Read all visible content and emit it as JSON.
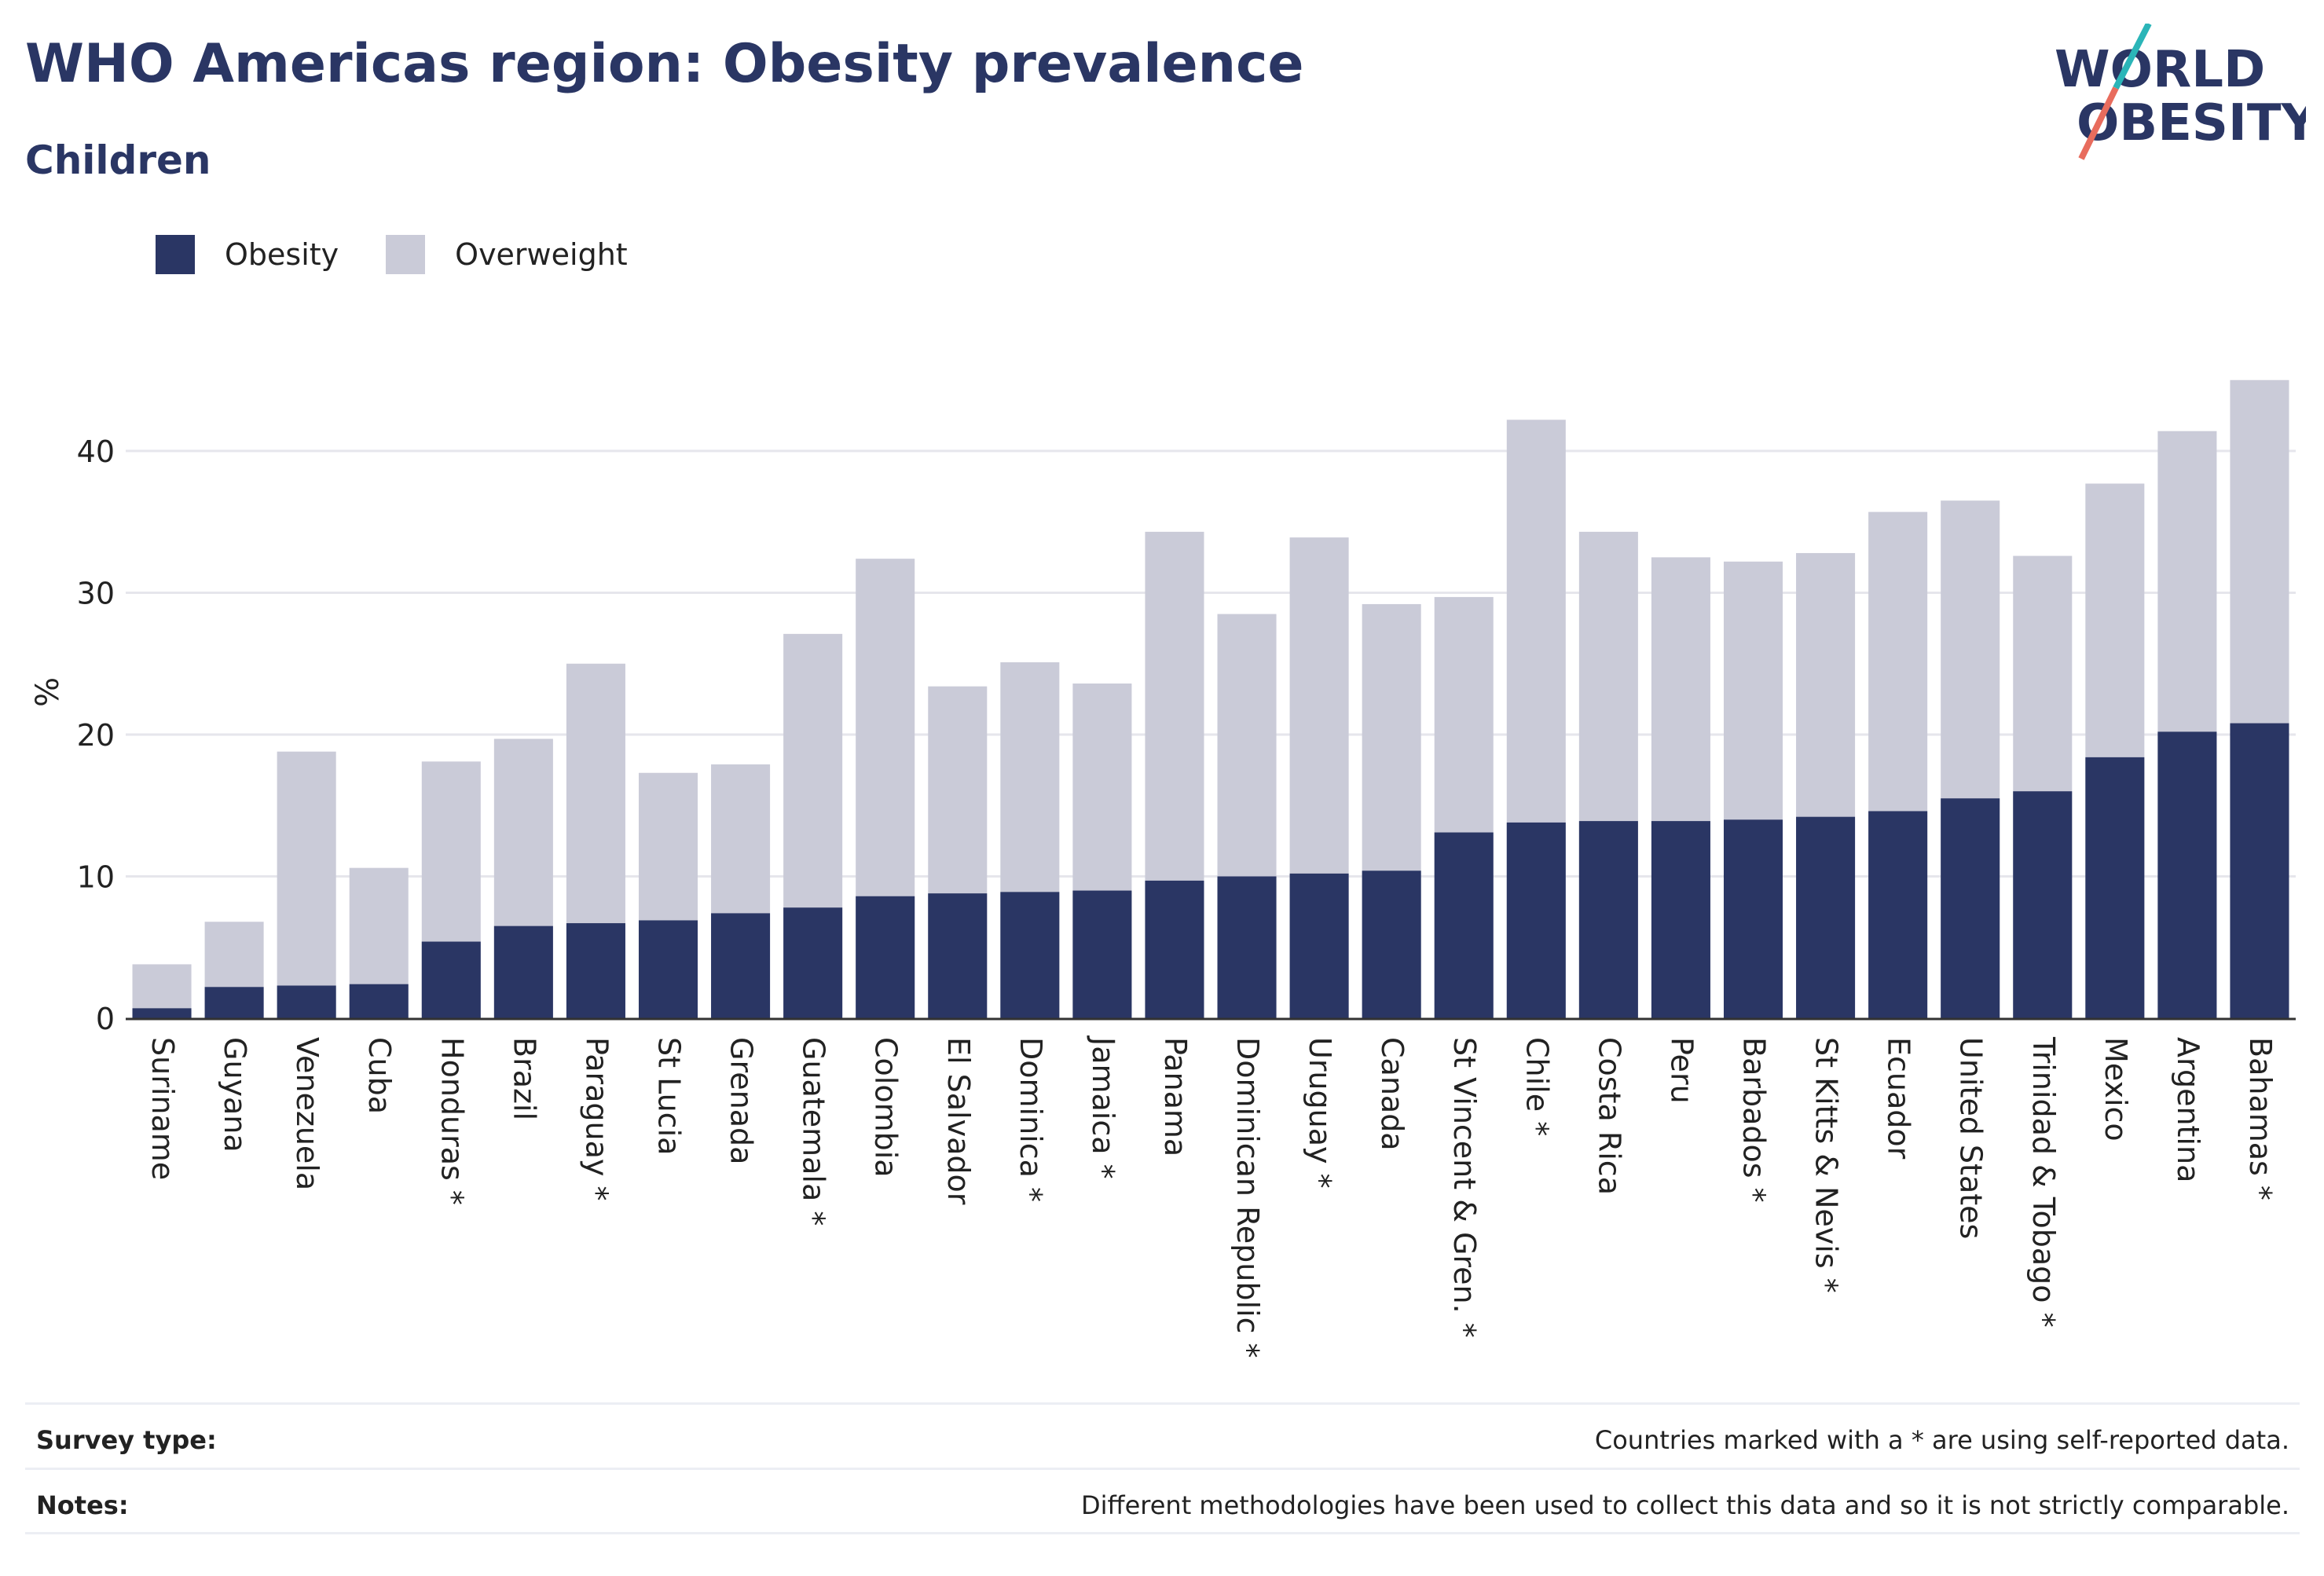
{
  "title": "WHO Americas region: Obesity prevalence",
  "subtitle": "Children",
  "logo": {
    "line1": "WORLD",
    "line2": "OBESITY"
  },
  "legend": [
    {
      "label": "Obesity",
      "color": "#2a3664"
    },
    {
      "label": "Overweight",
      "color": "#cacbd8"
    }
  ],
  "footer": {
    "survey_label": "Survey type:",
    "survey_text": "Countries marked with a * are using self-reported data.",
    "notes_label": "Notes:",
    "notes_text": "Different methodologies have been used to collect this data and so it is not strictly comparable."
  },
  "chart_data": {
    "type": "bar",
    "stacked": false,
    "ylabel": "%",
    "ylim": [
      0,
      46
    ],
    "yticks": [
      0,
      10,
      20,
      30,
      40
    ],
    "grid": true,
    "legend_position": "top-left",
    "categories": [
      "Suriname",
      "Guyana",
      "Venezuela",
      "Cuba",
      "Honduras *",
      "Brazil",
      "Paraguay *",
      "St Lucia",
      "Grenada",
      "Guatemala *",
      "Colombia",
      "El Salvador",
      "Dominica *",
      "Jamaica *",
      "Panama",
      "Dominican Republic *",
      "Uruguay *",
      "Canada",
      "St Vincent & Gren. *",
      "Chile *",
      "Costa Rica",
      "Peru",
      "Barbados *",
      "St Kitts & Nevis *",
      "Ecuador",
      "United States",
      "Trinidad & Tobago *",
      "Mexico",
      "Argentina",
      "Bahamas *"
    ],
    "series": [
      {
        "name": "Overweight",
        "color": "#cacbd8",
        "values": [
          3.8,
          6.8,
          18.8,
          10.6,
          18.1,
          19.7,
          25.0,
          17.3,
          17.9,
          27.1,
          32.4,
          23.4,
          25.1,
          23.6,
          34.3,
          28.5,
          33.9,
          29.2,
          29.7,
          42.2,
          34.3,
          32.5,
          32.2,
          32.8,
          35.7,
          36.5,
          32.6,
          37.7,
          41.4,
          45.0
        ]
      },
      {
        "name": "Obesity",
        "color": "#2a3664",
        "values": [
          0.7,
          2.2,
          2.3,
          2.4,
          5.4,
          6.5,
          6.7,
          6.9,
          7.4,
          7.8,
          8.6,
          8.8,
          8.9,
          9.0,
          9.7,
          10.0,
          10.2,
          10.4,
          13.1,
          13.8,
          13.9,
          13.9,
          14.0,
          14.2,
          14.6,
          15.5,
          16.0,
          18.4,
          20.2,
          20.8
        ]
      }
    ]
  }
}
